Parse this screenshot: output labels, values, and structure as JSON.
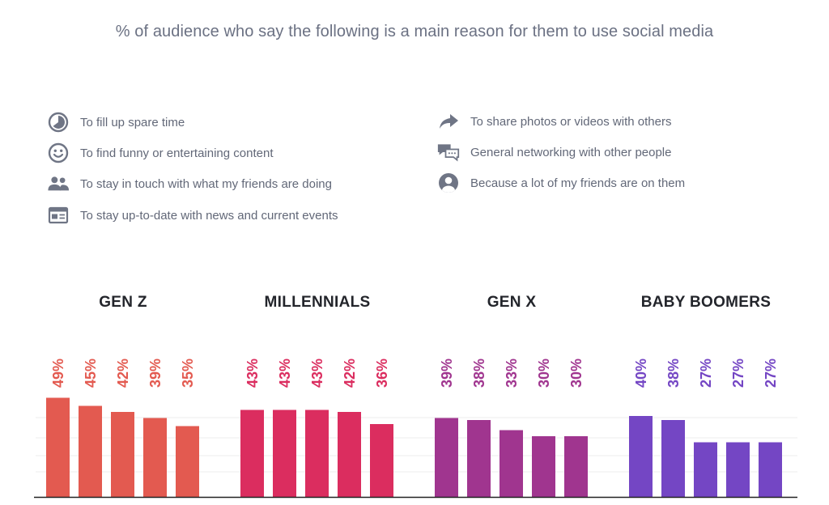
{
  "title": "% of audience who say the following is a main reason for them to use social media",
  "colors": {
    "text": "#626878",
    "icon": "#6f7585",
    "axis": "#222222",
    "grid": "#eeeeee"
  },
  "legend": {
    "left": [
      {
        "icon": "clock-icon",
        "label": "To fill up spare time"
      },
      {
        "icon": "smiley-icon",
        "label": "To find funny or entertaining content"
      },
      {
        "icon": "people-icon",
        "label": "To stay in touch with what my friends are doing"
      },
      {
        "icon": "newspaper-icon",
        "label": "To stay up-to-date with news and current events"
      }
    ],
    "right": [
      {
        "icon": "share-arrow-icon",
        "label": "To share photos or videos with others"
      },
      {
        "icon": "chat-bubbles-icon",
        "label": "General networking with other people"
      },
      {
        "icon": "user-circle-icon",
        "label": "Because a lot of my friends are on them"
      }
    ]
  },
  "chart_data": {
    "type": "bar",
    "title": "% of audience who say the following is a main reason for them to use social media",
    "unit": "%",
    "ylim": [
      0,
      60
    ],
    "grid": true,
    "groups": [
      {
        "name": "GEN Z",
        "color": "#e35a50",
        "labels": [
          "49%",
          "45%",
          "42%",
          "39%",
          "35%"
        ],
        "values": [
          49,
          45,
          42,
          39,
          35
        ]
      },
      {
        "name": "MILLENNIALS",
        "color": "#db2d5f",
        "labels": [
          "43%",
          "43%",
          "43%",
          "42%",
          "36%"
        ],
        "values": [
          43,
          43,
          43,
          42,
          36
        ]
      },
      {
        "name": "GEN X",
        "color": "#a0358f",
        "labels": [
          "39%",
          "38%",
          "33%",
          "30%",
          "30%"
        ],
        "values": [
          39,
          38,
          33,
          30,
          30
        ]
      },
      {
        "name": "BABY BOOMERS",
        "color": "#7446c4",
        "labels": [
          "40%",
          "38%",
          "27%",
          "27%",
          "27%"
        ],
        "values": [
          40,
          38,
          27,
          27,
          27
        ]
      }
    ]
  }
}
